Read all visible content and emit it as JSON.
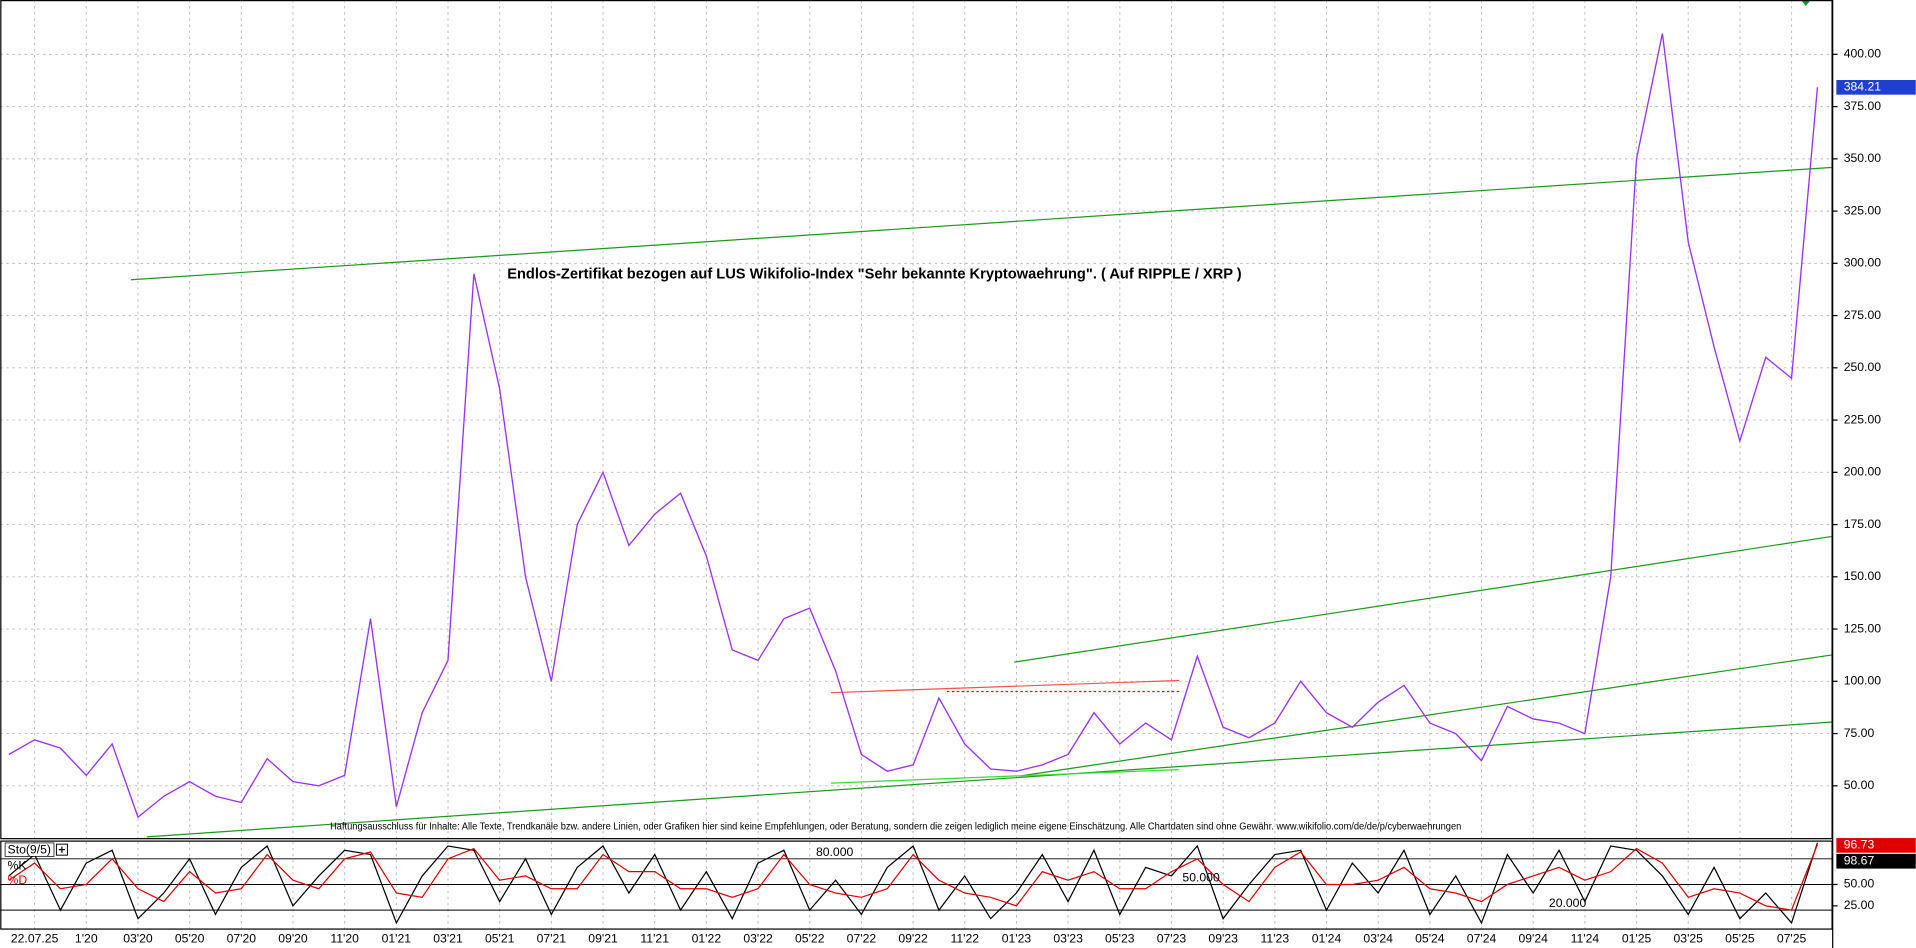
{
  "chart_data": [
    {
      "type": "line",
      "title": "Endlos-Zertifikat bezogen auf LUS Wikifolio-Index \"Sehr bekannte Kryptowaehrung\". ( Auf RIPPLE / XRP )",
      "disclaimer": "Haftungsausschluss für Inhalte: Alle Texte, Trendkanäle bzw. andere Linien, oder Grafiken hier sind keine Empfehlungen, oder Beratung, sondern die zeigen lediglich meine eigene Einschätzung. Alle Chartdaten sind ohne Gewähr.  www.wikifolio.com/de/de/p/cyberwaehrungen",
      "categories": [
        null,
        "22.07.25",
        null,
        "1'20",
        null,
        "03'20",
        null,
        "05'20",
        null,
        "07'20",
        null,
        "09'20",
        null,
        "11'20",
        null,
        "01'21",
        null,
        "03'21",
        null,
        "05'21",
        null,
        "07'21",
        null,
        "09'21",
        null,
        "11'21",
        null,
        "01'22",
        null,
        "03'22",
        null,
        "05'22",
        null,
        "07'22",
        null,
        "09'22",
        null,
        "11'22",
        null,
        "01'23",
        null,
        "03'23",
        null,
        "05'23",
        null,
        "07'23",
        null,
        "09'23",
        null,
        "11'23",
        null,
        "01'24",
        null,
        "03'24",
        null,
        "05'24",
        null,
        "07'24",
        null,
        "09'24",
        null,
        "11'24",
        null,
        "01'25",
        null,
        "03'25",
        null,
        "05'25",
        null,
        "07'25",
        null
      ],
      "values": [
        65,
        72,
        68,
        55,
        70,
        35,
        45,
        52,
        45,
        42,
        63,
        52,
        50,
        55,
        130,
        40,
        85,
        110,
        295,
        240,
        150,
        100,
        175,
        200,
        165,
        180,
        190,
        160,
        115,
        110,
        130,
        135,
        105,
        65,
        57,
        60,
        92,
        70,
        58,
        57,
        60,
        65,
        85,
        70,
        80,
        72,
        112,
        78,
        73,
        80,
        100,
        85,
        78,
        90,
        98,
        80,
        75,
        62,
        88,
        82,
        80,
        75,
        150,
        350,
        410,
        310,
        260,
        215,
        255,
        245,
        384.21
      ],
      "color": "#9932ff",
      "ylim": [
        25,
        426
      ],
      "yticks": [
        {
          "value": 50,
          "label": "50.00"
        },
        {
          "value": 75,
          "label": "75.00"
        },
        {
          "value": 100,
          "label": "100.00"
        },
        {
          "value": 125,
          "label": "125.00"
        },
        {
          "value": 150,
          "label": "150.00"
        },
        {
          "value": 175,
          "label": "175.00"
        },
        {
          "value": 200,
          "label": "200.00"
        },
        {
          "value": 225,
          "label": "225.00"
        },
        {
          "value": 250,
          "label": "250.00"
        },
        {
          "value": 275,
          "label": "275.00"
        },
        {
          "value": 300,
          "label": "300.00"
        },
        {
          "value": 325,
          "label": "325.00"
        },
        {
          "value": 350,
          "label": "350.00"
        },
        {
          "value": 375,
          "label": "375.00"
        },
        {
          "value": 400,
          "label": "400.00"
        }
      ],
      "grid": true
    },
    {
      "type": "line",
      "title": "Sto(9/5)",
      "series": [
        {
          "name": "%K",
          "color": "#000000",
          "values": [
            60,
            85,
            20,
            75,
            90,
            10,
            40,
            80,
            15,
            70,
            95,
            25,
            60,
            90,
            85,
            5,
            60,
            95,
            90,
            30,
            80,
            15,
            70,
            95,
            40,
            85,
            20,
            65,
            10,
            75,
            90,
            20,
            55,
            15,
            70,
            95,
            20,
            60,
            10,
            40,
            85,
            30,
            90,
            15,
            70,
            60,
            95,
            10,
            50,
            85,
            90,
            20,
            75,
            40,
            90,
            15,
            60,
            5,
            85,
            40,
            90,
            30,
            95,
            90,
            60,
            15,
            70,
            10,
            40,
            5,
            98.67
          ]
        },
        {
          "name": "%D",
          "color": "#e00000",
          "values": [
            55,
            75,
            45,
            50,
            80,
            45,
            30,
            65,
            40,
            45,
            85,
            55,
            45,
            80,
            88,
            40,
            35,
            80,
            92,
            55,
            60,
            45,
            45,
            85,
            65,
            65,
            45,
            45,
            35,
            45,
            85,
            50,
            40,
            35,
            45,
            85,
            55,
            40,
            35,
            25,
            65,
            55,
            65,
            45,
            45,
            65,
            80,
            50,
            30,
            70,
            88,
            50,
            50,
            55,
            70,
            45,
            40,
            30,
            50,
            60,
            70,
            55,
            65,
            92,
            75,
            35,
            45,
            40,
            25,
            20,
            96.73
          ]
        }
      ],
      "ylim": [
        0,
        100
      ],
      "yticks": [
        {
          "value": 25,
          "label": "25.00"
        },
        {
          "value": 50,
          "label": "50.00"
        }
      ],
      "levels": [
        {
          "value": 80,
          "label": "80.000"
        },
        {
          "value": 50,
          "label": "50.000"
        },
        {
          "value": 20,
          "label": "20.000"
        }
      ]
    }
  ]
}
